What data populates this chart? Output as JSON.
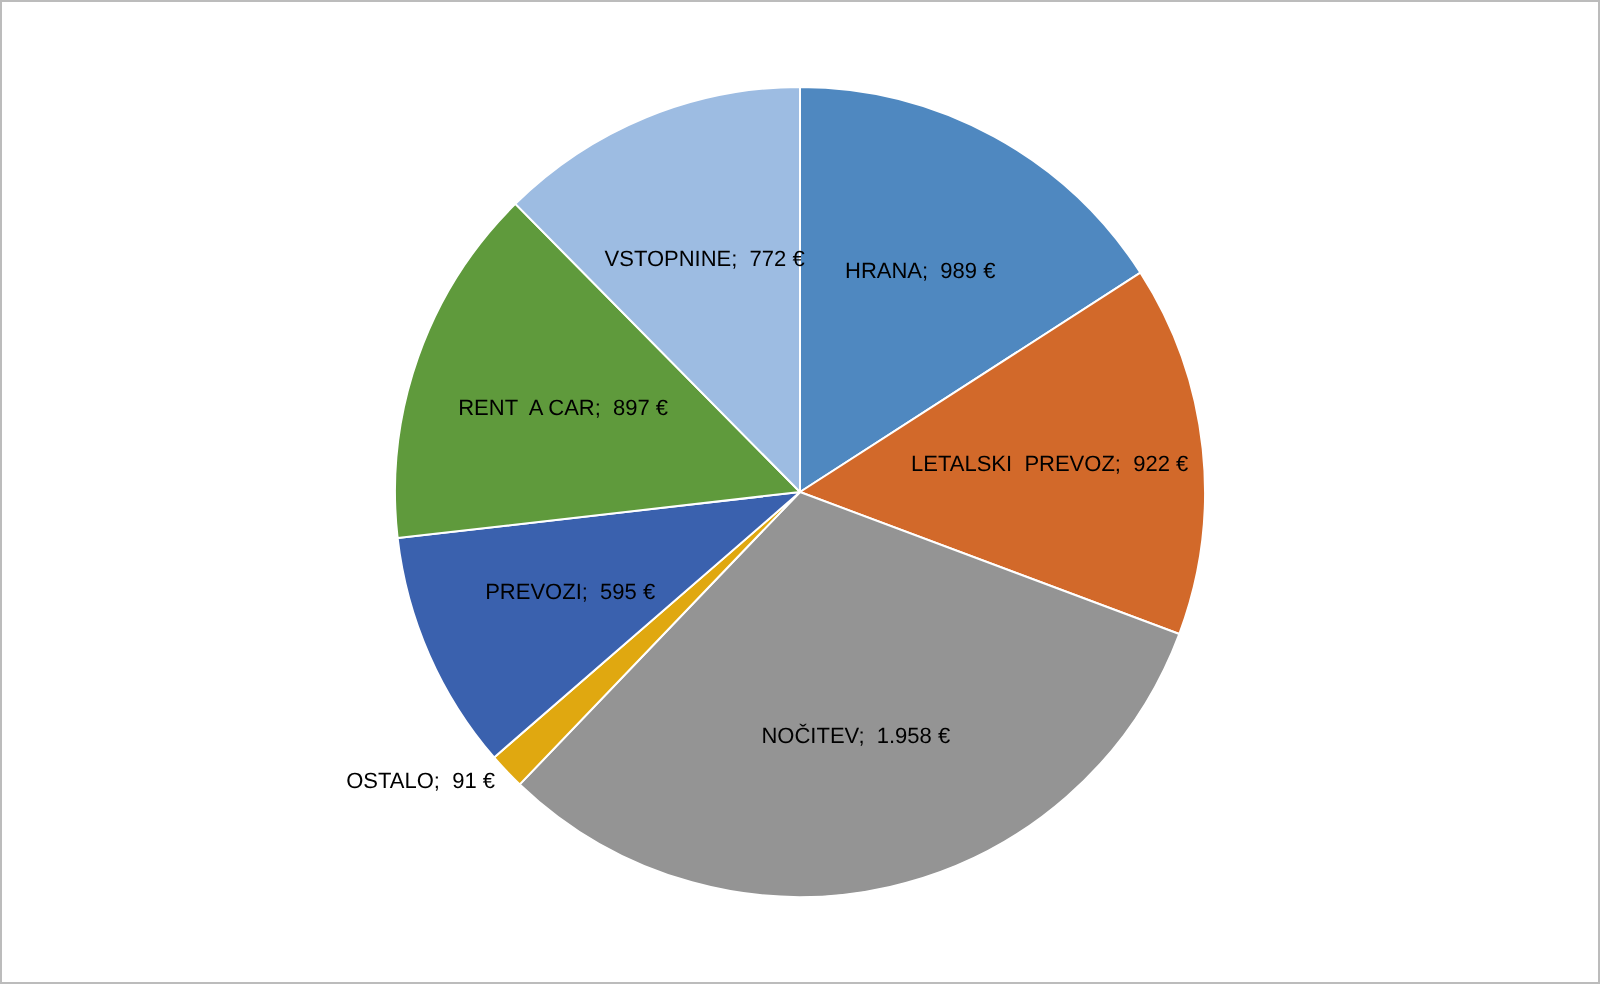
{
  "chart_data": {
    "type": "pie",
    "categories": [
      "HRANA",
      "LETALSKI  PREVOZ",
      "NOČITEV",
      "OSTALO",
      "PREVOZI",
      "RENT  A CAR",
      "VSTOPNINE"
    ],
    "values": [
      989,
      922,
      1958,
      91,
      595,
      897,
      772
    ],
    "value_labels": [
      "989 €",
      "922 €",
      "1.958 €",
      "91 €",
      "595 €",
      "897 €",
      "772 €"
    ],
    "colors": [
      "#4f88c0",
      "#d2692a",
      "#949494",
      "#e0a810",
      "#3a61ae",
      "#5f9a3c",
      "#9dbce2"
    ],
    "legend": false
  }
}
